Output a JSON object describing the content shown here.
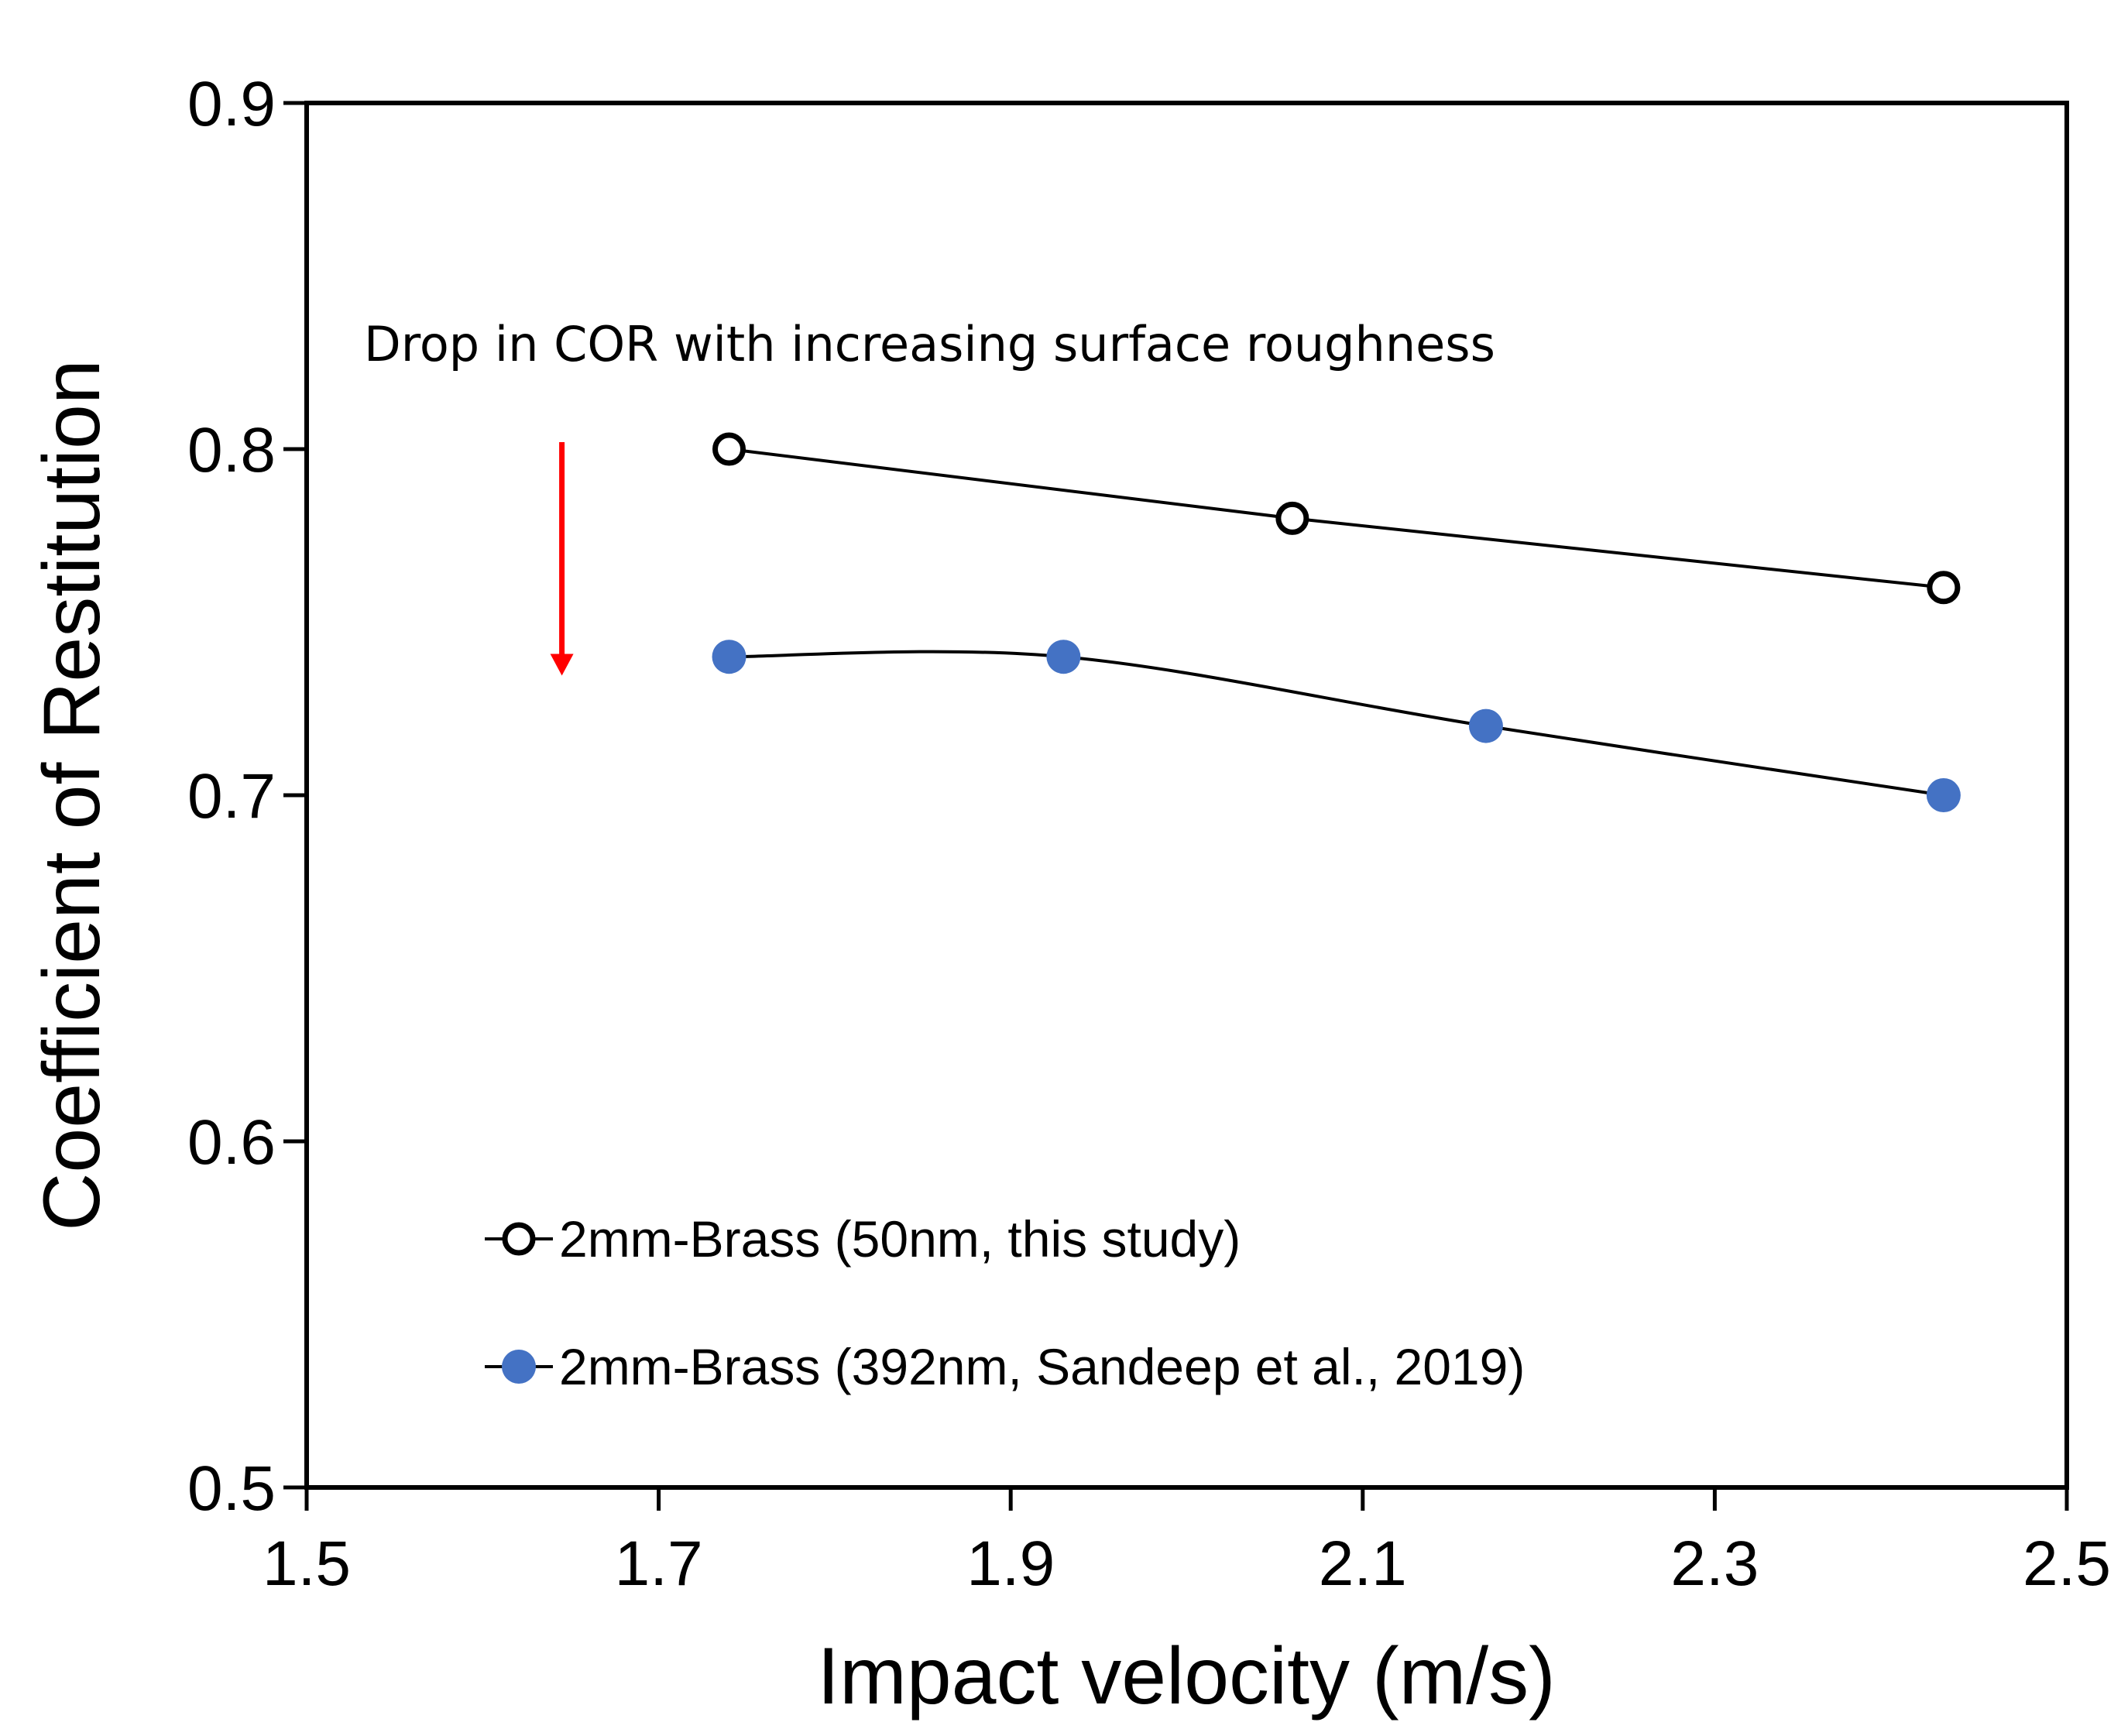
{
  "chart_data": {
    "type": "line",
    "title": "",
    "xlabel": "Impact velocity (m/s)",
    "ylabel": "Coefficient of Restitution",
    "xlim": [
      1.5,
      2.5
    ],
    "ylim": [
      0.5,
      0.9
    ],
    "xticks": [
      1.5,
      1.7,
      1.9,
      2.1,
      2.3,
      2.5
    ],
    "yticks": [
      0.5,
      0.6,
      0.7,
      0.8,
      0.9
    ],
    "xtick_labels": [
      "1.5",
      "1.7",
      "1.9",
      "2.1",
      "2.3",
      "2.5"
    ],
    "ytick_labels": [
      "0.5",
      "0.6",
      "0.7",
      "0.8",
      "0.9"
    ],
    "grid": false,
    "legend_position": "bottom-left",
    "series": [
      {
        "name": "2mm-Brass (50nm, this study)",
        "marker": "open-circle",
        "marker_color": "#000000",
        "line_color": "#000000",
        "line_style": "straight",
        "x": [
          1.74,
          2.06,
          2.43
        ],
        "y": [
          0.8,
          0.78,
          0.76
        ]
      },
      {
        "name": "2mm-Brass (392nm, Sandeep et al., 2019)",
        "marker": "filled-circle",
        "marker_color": "#4472C4",
        "line_color": "#000000",
        "line_style": "smooth",
        "x": [
          1.74,
          1.93,
          2.17,
          2.43
        ],
        "y": [
          0.74,
          0.74,
          0.72,
          0.7
        ]
      }
    ],
    "annotations": [
      {
        "text": "Drop in COR with increasing surface roughness",
        "arrow_color": "#FF0000",
        "arrow_direction": "down",
        "arrow_x": 1.645,
        "arrow_y_from": 0.802,
        "arrow_y_to": 0.735
      }
    ]
  }
}
